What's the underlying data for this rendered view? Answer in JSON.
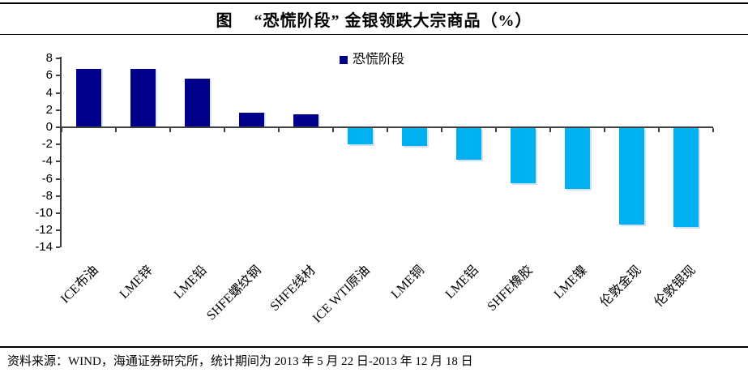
{
  "page": {
    "title_label": "图",
    "title": "“恐慌阶段” 金银领跌大宗商品（%）",
    "source_note": "资料来源：WIND，海通证券研究所，统计期间为 2013 年 5 月 22 日-2013 年 12 月 18 日"
  },
  "legend": {
    "items": [
      {
        "label": "恐慌阶段",
        "color": "#00008B"
      }
    ]
  },
  "chart_data": {
    "type": "bar",
    "title": "图 “恐慌阶段” 金银领跌大宗商品（%）",
    "categories": [
      "ICE布油",
      "LME锌",
      "LME铅",
      "SHFE螺纹钢",
      "SHFE线材",
      "ICE WTI原油",
      "LME铜",
      "LME铝",
      "SHFE橡胶",
      "LME镍",
      "伦敦金现",
      "伦敦银现"
    ],
    "series": [
      {
        "name": "恐慌阶段",
        "values": [
          6.8,
          6.8,
          5.7,
          1.7,
          1.5,
          -1.9,
          -2.1,
          -3.7,
          -6.4,
          -7.1,
          -11.2,
          -11.5
        ]
      }
    ],
    "xlabel": "",
    "ylabel": "",
    "ylim": [
      -14,
      8
    ],
    "ytick_step": 2,
    "grid": false,
    "legend_position": "top-center",
    "colors": {
      "positive_bar": "#00008B",
      "negative_bar": "#00B0F0",
      "axis": "#3f3f3f"
    }
  }
}
